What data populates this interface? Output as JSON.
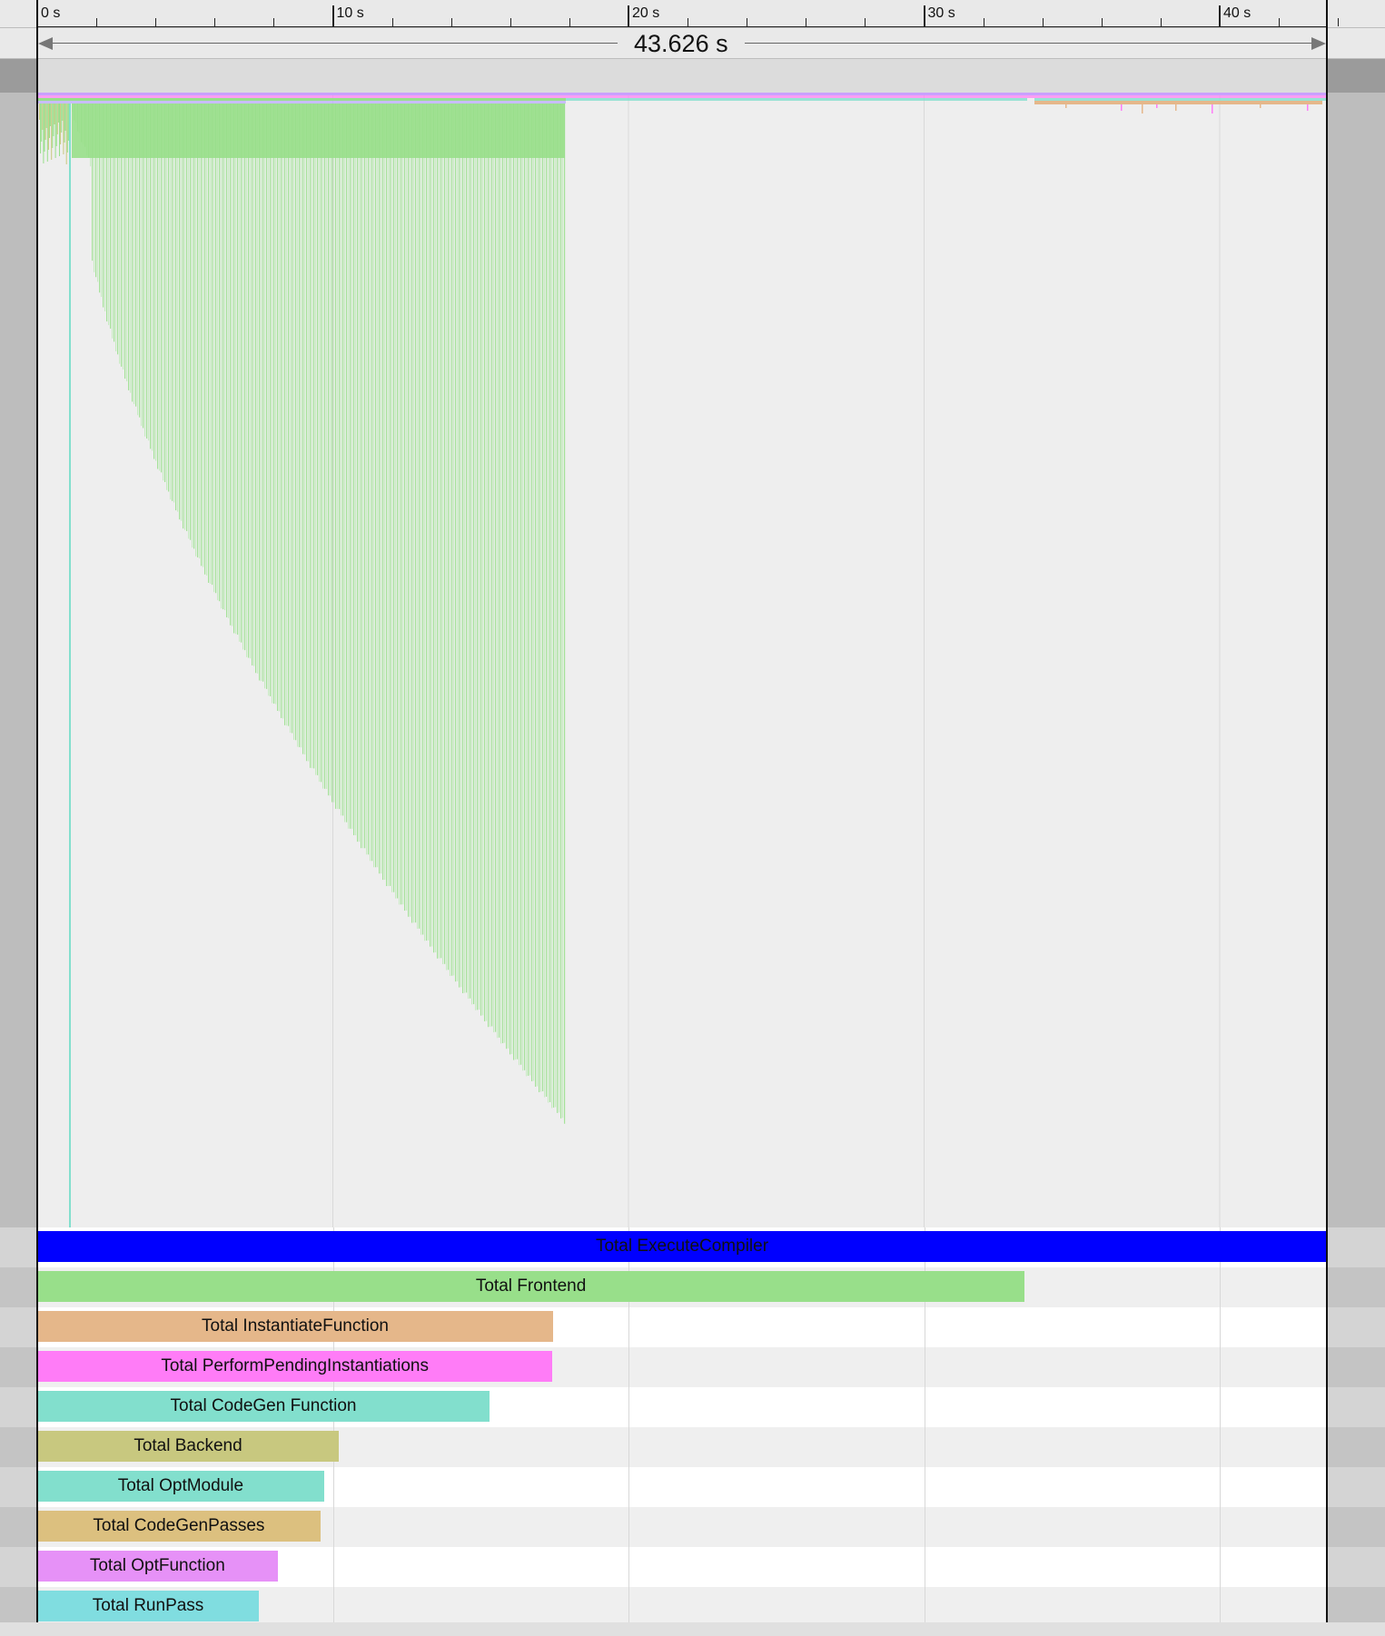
{
  "ruler": {
    "ticks": [
      "0 s",
      "10 s",
      "20 s",
      "30 s",
      "40 s"
    ],
    "max_seconds": 43.626
  },
  "selection": {
    "duration_label": "43.626 s"
  },
  "chart_data": {
    "type": "bar",
    "orientation": "horizontal",
    "xlim": [
      0,
      43.626
    ],
    "categories": [
      "Total ExecuteCompiler",
      "Total Frontend",
      "Total InstantiateFunction",
      "Total PerformPendingInstantiations",
      "Total CodeGen Function",
      "Total Backend",
      "Total OptModule",
      "Total CodeGenPasses",
      "Total OptFunction",
      "Total RunPass"
    ],
    "values": [
      43.626,
      33.4,
      17.45,
      17.43,
      15.3,
      10.2,
      9.7,
      9.58,
      8.13,
      7.5
    ],
    "colors": [
      "#0000ff",
      "#98df8a",
      "#e5b78a",
      "#ff7cf7",
      "#82dfcd",
      "#c8c87f",
      "#82dfcd",
      "#dcc07f",
      "#e691f7",
      "#80dde0"
    ]
  },
  "flame": {
    "ExecuteCompiler_color": "#c9a0ff",
    "frontend_color": "#98df8a",
    "frontend_light_color": "#c8ebc2",
    "instantiate_color": "#e5b78a",
    "codegen_color": "#82dfcd",
    "cascade_end_seconds": 17.85
  }
}
